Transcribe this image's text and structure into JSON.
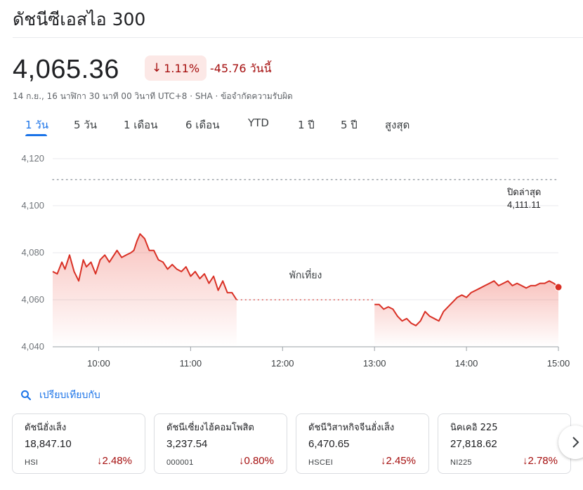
{
  "header": {
    "title": "ดัชนีซีเอสไอ 300"
  },
  "quote": {
    "price": "4,065.36",
    "change_pct": "1.11%",
    "change_abs": "-45.76 วันนี้",
    "meta": "14 ก.ย., 16 นาฬิกา 30 นาที 00 วินาที UTC+8 · SHA · ข้อจำกัดความรับผิด",
    "direction": "down",
    "down_color": "#a50e0e"
  },
  "tabs": [
    {
      "label": "1 วัน",
      "active": true
    },
    {
      "label": "5 วัน"
    },
    {
      "label": "1 เดือน"
    },
    {
      "label": "6 เดือน"
    },
    {
      "label": "YTD"
    },
    {
      "label": "1 ปี"
    },
    {
      "label": "5 ปี"
    },
    {
      "label": "สูงสุด"
    }
  ],
  "chart_data": {
    "type": "line",
    "x_unit": "time of day",
    "yticks": [
      "4,120",
      "4,100",
      "4,080",
      "4,060",
      "4,040"
    ],
    "ylim": [
      4040,
      4120
    ],
    "xticks": [
      "10:00",
      "11:00",
      "12:00",
      "13:00",
      "14:00",
      "15:00"
    ],
    "xlim": [
      "9:30",
      "15:00"
    ],
    "prev_close_label": "ปิดล่าสุด",
    "prev_close_value_label": "4,111.11",
    "prev_close": 4111.11,
    "break_label": "พักเที่ยง",
    "series_color": "#d93025",
    "grid": true,
    "morning": {
      "x": [
        "9:30",
        "9:33",
        "9:36",
        "9:38",
        "9:41",
        "9:44",
        "9:47",
        "9:50",
        "9:52",
        "9:55",
        "9:58",
        "10:01",
        "10:04",
        "10:07",
        "10:09",
        "10:12",
        "10:15",
        "10:18",
        "10:21",
        "10:23",
        "10:25",
        "10:27",
        "10:30",
        "10:33",
        "10:36",
        "10:39",
        "10:42",
        "10:45",
        "10:48",
        "10:51",
        "10:54",
        "10:57",
        "11:00",
        "11:03",
        "11:06",
        "11:09",
        "11:12",
        "11:15",
        "11:18",
        "11:21",
        "11:24",
        "11:27",
        "11:30"
      ],
      "y": [
        4072,
        4071,
        4076,
        4073,
        4079,
        4072,
        4068,
        4077,
        4074,
        4076,
        4071,
        4077,
        4079,
        4076,
        4078,
        4081,
        4078,
        4079,
        4080,
        4081,
        4085,
        4088,
        4086,
        4081,
        4081,
        4077,
        4076,
        4073,
        4075,
        4073,
        4072,
        4074,
        4070,
        4072,
        4069,
        4071,
        4067,
        4070,
        4064,
        4068,
        4063,
        4063,
        4060
      ]
    },
    "afternoon": {
      "x": [
        "13:00",
        "13:03",
        "13:06",
        "13:09",
        "13:12",
        "13:15",
        "13:18",
        "13:21",
        "13:24",
        "13:27",
        "13:30",
        "13:33",
        "13:36",
        "13:39",
        "13:42",
        "13:45",
        "13:48",
        "13:51",
        "13:54",
        "13:57",
        "14:00",
        "14:03",
        "14:06",
        "14:09",
        "14:12",
        "14:15",
        "14:18",
        "14:21",
        "14:24",
        "14:27",
        "14:30",
        "14:33",
        "14:36",
        "14:39",
        "14:42",
        "14:45",
        "14:48",
        "14:51",
        "14:54",
        "14:57",
        "15:00"
      ],
      "y": [
        4058,
        4058,
        4056,
        4057,
        4056,
        4053,
        4051,
        4052,
        4050,
        4049,
        4051,
        4055,
        4053,
        4052,
        4051,
        4055,
        4057,
        4059,
        4061,
        4062,
        4061,
        4063,
        4064,
        4065,
        4066,
        4067,
        4068,
        4066,
        4067,
        4068,
        4066,
        4067,
        4066,
        4065,
        4066,
        4066,
        4067,
        4067,
        4068,
        4067,
        4065.36
      ]
    }
  },
  "compare": {
    "label": "เปรียบเทียบกับ",
    "icon": "search-icon"
  },
  "related": [
    {
      "name": "ดัชนีฮั่งเส็ง",
      "value": "18,847.10",
      "ticker": "HSI",
      "pct": "2.48%"
    },
    {
      "name": "ดัชนีเซี่ยงไฮ้คอมโพสิต",
      "value": "3,237.54",
      "ticker": "000001",
      "pct": "0.80%"
    },
    {
      "name": "ดัชนีวิสาหกิจจีนฮั่งเส็ง",
      "value": "6,470.65",
      "ticker": "HSCEI",
      "pct": "2.45%"
    },
    {
      "name": "นิคเคอิ 225",
      "value": "27,818.62",
      "ticker": "NI225",
      "pct": "2.78%"
    }
  ]
}
